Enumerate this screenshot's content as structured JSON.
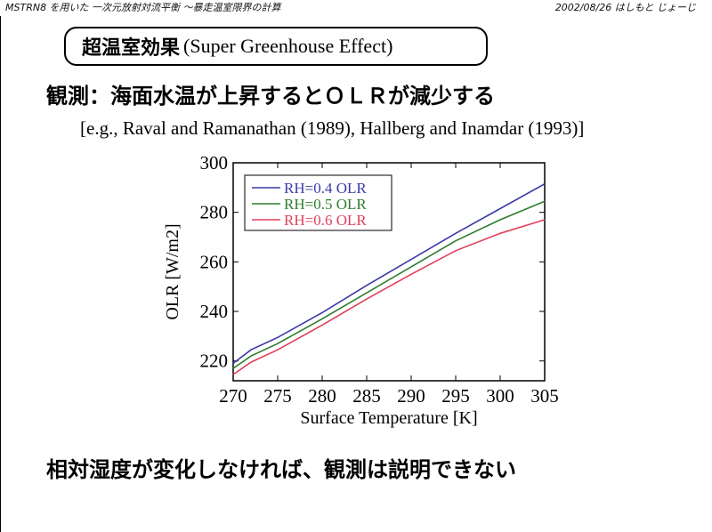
{
  "header": {
    "left_note": "MSTRN8 を用いた 一次元放射対流平衡 〜暴走温室限界の計算",
    "right_note": "2002/08/26  はしもと じょーじ"
  },
  "title": {
    "jp": "超温室効果",
    "en": "(Super Greenhouse Effect)"
  },
  "observation": "観測：海面水温が上昇するとＯＬＲが減少する",
  "reference": "[e.g.,  Raval and Ramanathan (1989),  Hallberg and Inamdar (1993)]",
  "conclusion": "相対湿度が変化しなければ、観測は説明できない",
  "chart_data": {
    "type": "line",
    "xlabel": "Surface Temperature  [K]",
    "ylabel": "OLR  [W/m2]",
    "xlim": [
      270,
      305
    ],
    "ylim": [
      212,
      300
    ],
    "xticks": [
      270,
      275,
      280,
      285,
      290,
      295,
      300,
      305
    ],
    "yticks": [
      220,
      240,
      260,
      280,
      300
    ],
    "grid": false,
    "legend": "top-left",
    "x": [
      270,
      272,
      275,
      280,
      285,
      290,
      295,
      300,
      305
    ],
    "series": [
      {
        "name": "RH=0.4  OLR",
        "color": "#3a3aa8",
        "values": [
          219,
          224.5,
          229.5,
          239.5,
          250.5,
          261,
          271.5,
          281.5,
          291.5
        ]
      },
      {
        "name": "RH=0.5  OLR",
        "color": "#2e7d2e",
        "values": [
          217,
          222,
          227,
          237,
          247.5,
          258,
          268.5,
          277,
          284.5
        ]
      },
      {
        "name": "RH=0.6  OLR",
        "color": "#e0405a",
        "values": [
          214.5,
          219.5,
          224.5,
          234.5,
          245,
          255,
          264.5,
          271.5,
          277
        ]
      }
    ]
  }
}
